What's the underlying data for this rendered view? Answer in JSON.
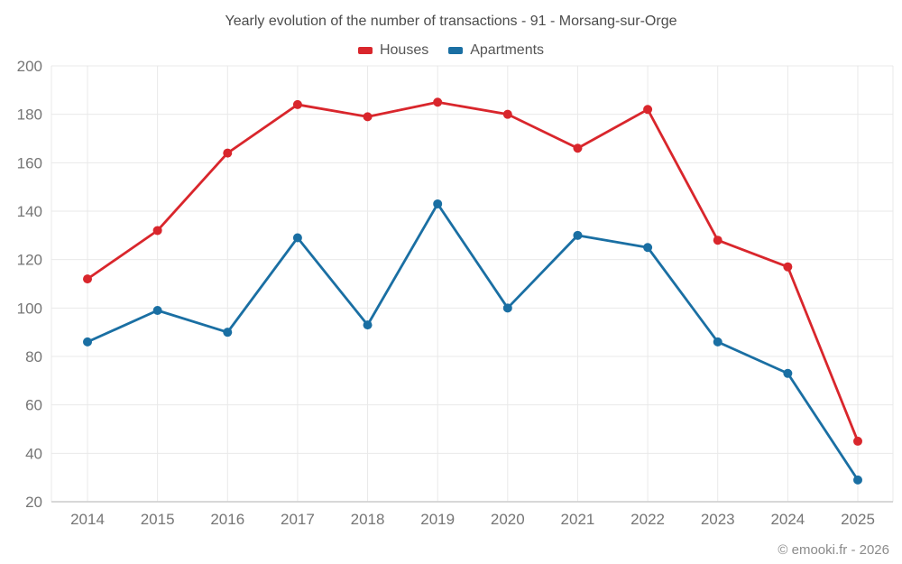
{
  "header": {
    "title": "Yearly evolution of the number of transactions - 91 - Morsang-sur-Orge"
  },
  "footer": {
    "credit": "© emooki.fr - 2026"
  },
  "colors": {
    "houses": "#d9262c",
    "apartments": "#1a6fa3",
    "title_text": "#4c4c4c",
    "tick_text": "#757575",
    "gridline": "#e9e9e9",
    "axis_line": "#cccccc",
    "background": "#ffffff"
  },
  "chart_data": {
    "type": "line",
    "title": "Yearly evolution of the number of transactions - 91 - Morsang-sur-Orge",
    "x": [
      2014,
      2015,
      2016,
      2017,
      2018,
      2019,
      2020,
      2021,
      2022,
      2023,
      2024,
      2025
    ],
    "series": [
      {
        "name": "Houses",
        "color": "#d9262c",
        "values": [
          112,
          132,
          164,
          184,
          179,
          185,
          180,
          166,
          182,
          128,
          117,
          45
        ]
      },
      {
        "name": "Apartments",
        "color": "#1a6fa3",
        "values": [
          86,
          99,
          90,
          129,
          93,
          143,
          100,
          130,
          125,
          86,
          73,
          29
        ]
      }
    ],
    "xlabel": "",
    "ylabel": "",
    "ylim": [
      20,
      200
    ],
    "yticks": [
      20,
      40,
      60,
      80,
      100,
      120,
      140,
      160,
      180,
      200
    ],
    "grid": true,
    "legend_position": "top",
    "marker": "circle"
  }
}
